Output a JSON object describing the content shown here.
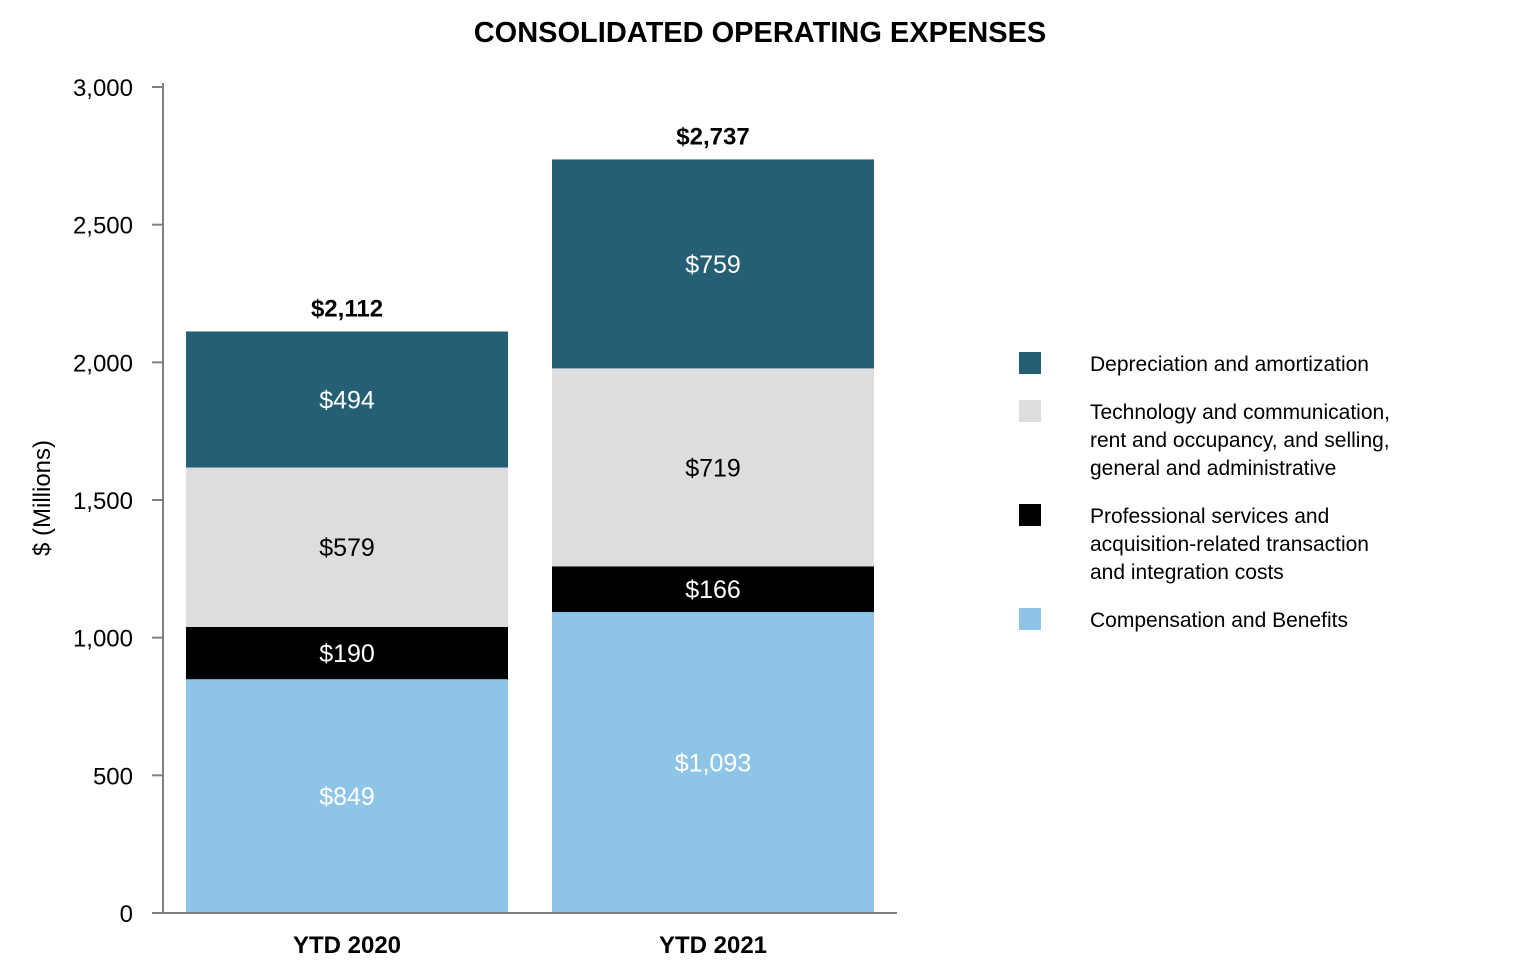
{
  "chart_data": {
    "type": "bar",
    "stacked": true,
    "title": "CONSOLIDATED OPERATING EXPENSES",
    "xlabel": "",
    "ylabel": "$ (Millions)",
    "ylim": [
      0,
      3000
    ],
    "yticks": [
      0,
      500,
      1000,
      1500,
      2000,
      2500,
      3000
    ],
    "ytick_labels": [
      "0",
      "500",
      "1,000",
      "1,500",
      "2,000",
      "2,500",
      "3,000"
    ],
    "categories": [
      "YTD 2020",
      "YTD 2021"
    ],
    "totals": [
      2112,
      2737
    ],
    "total_labels": [
      "$2,112",
      "$2,737"
    ],
    "series": [
      {
        "name": "Compensation and Benefits",
        "color": "#8ec5e7",
        "label_color": "#ffffff",
        "values": [
          849,
          1093
        ],
        "labels": [
          "$849",
          "$1,093"
        ]
      },
      {
        "name": "Professional services and acquisition-related transaction and integration costs",
        "legend_lines": [
          "Professional services and",
          "acquisition-related transaction",
          "and integration costs"
        ],
        "color": "#000000",
        "label_color": "#ffffff",
        "values": [
          190,
          166
        ],
        "labels": [
          "$190",
          "$166"
        ]
      },
      {
        "name": "Technology and communication, rent and occupancy, and selling, general and administrative",
        "legend_lines": [
          "Technology and communication,",
          "rent and occupancy, and selling,",
          "general and administrative"
        ],
        "color": "#dcdddf",
        "label_color": "#000000",
        "values": [
          579,
          719
        ],
        "labels": [
          "$579",
          "$719"
        ]
      },
      {
        "name": "Depreciation and amortization",
        "color": "#245f73",
        "label_color": "#ffffff",
        "values": [
          494,
          759
        ],
        "labels": [
          "$494",
          "$759"
        ]
      }
    ],
    "legend_order": [
      3,
      2,
      1,
      0
    ],
    "legend_position": "right"
  }
}
